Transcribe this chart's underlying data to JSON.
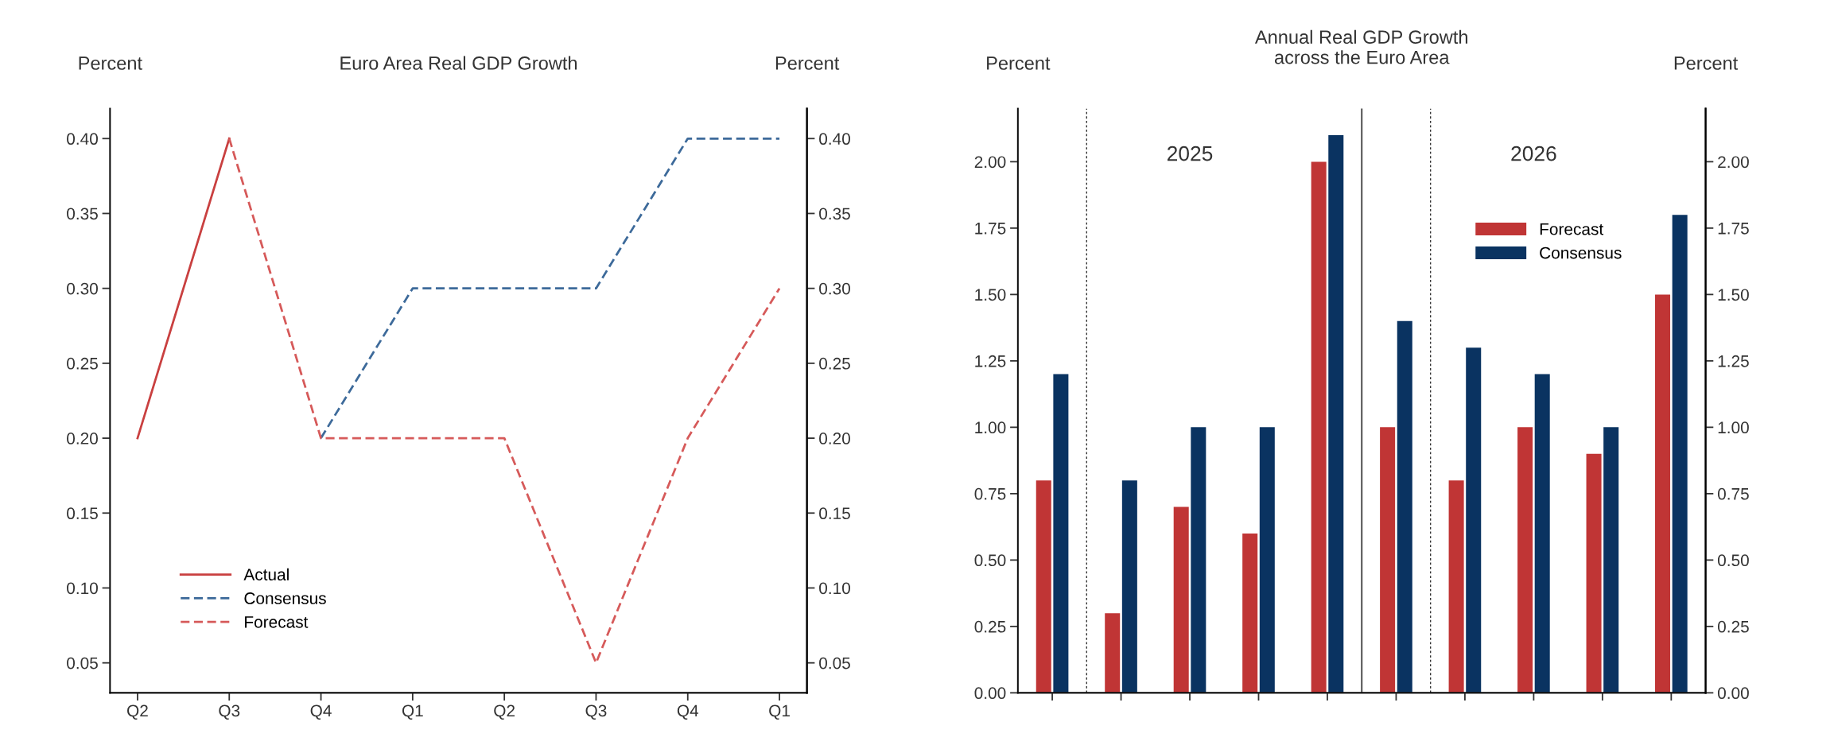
{
  "chart_data": [
    {
      "type": "line",
      "title": "Euro Area Real GDP Growth",
      "ylabel": "Percent",
      "y2label": "Percent",
      "categories": [
        "Q2",
        "Q3",
        "Q4",
        "Q1",
        "Q2",
        "Q3",
        "Q4",
        "Q1"
      ],
      "ylim": [
        0.03,
        0.42
      ],
      "yticks": [
        {
          "value": 0.05,
          "label": "0.05"
        },
        {
          "value": 0.1,
          "label": "0.10"
        },
        {
          "value": 0.15,
          "label": "0.15"
        },
        {
          "value": 0.2,
          "label": "0.20"
        },
        {
          "value": 0.25,
          "label": "0.25"
        },
        {
          "value": 0.3,
          "label": "0.30"
        },
        {
          "value": 0.35,
          "label": "0.35"
        },
        {
          "value": 0.4,
          "label": "0.40"
        }
      ],
      "y2lim": [
        0.03,
        0.42
      ],
      "y2ticks": [
        {
          "value": 0.05,
          "label": "0.05"
        },
        {
          "value": 0.1,
          "label": "0.10"
        },
        {
          "value": 0.15,
          "label": "0.15"
        },
        {
          "value": 0.2,
          "label": "0.20"
        },
        {
          "value": 0.25,
          "label": "0.25"
        },
        {
          "value": 0.3,
          "label": "0.30"
        },
        {
          "value": 0.35,
          "label": "0.35"
        },
        {
          "value": 0.4,
          "label": "0.40"
        }
      ],
      "legend": "bottom left",
      "series": [
        {
          "name": "Actual",
          "color": "#c94040",
          "line_style": "solid",
          "values": [
            0.2,
            0.4,
            null,
            null,
            null,
            null,
            null,
            null
          ]
        },
        {
          "name": "Consensus",
          "color": "#3d6a9a",
          "line_style": "dashed",
          "values": [
            null,
            null,
            0.2,
            0.3,
            0.3,
            0.3,
            0.4,
            0.4
          ]
        },
        {
          "name": "Forecast",
          "color": "#d65a5a",
          "line_style": "dashed",
          "values": [
            null,
            0.4,
            0.2,
            0.2,
            0.2,
            0.05,
            0.2,
            0.3
          ]
        }
      ]
    },
    {
      "type": "bar",
      "title": "Annual Real GDP Growth\nacross the Euro Area",
      "ylabel": "Percent",
      "y2label": "Percent",
      "categories": [
        null,
        null,
        null,
        null,
        null,
        null,
        null,
        null,
        null,
        null
      ],
      "ylim": [
        0,
        2.2
      ],
      "yticks": [
        {
          "value": 0,
          "label": "0.00"
        },
        {
          "value": 0.25,
          "label": "0.25"
        },
        {
          "value": 0.5,
          "label": "0.50"
        },
        {
          "value": 0.75,
          "label": "0.75"
        },
        {
          "value": 1,
          "label": "1.00"
        },
        {
          "value": 1.25,
          "label": "1.25"
        },
        {
          "value": 1.5,
          "label": "1.50"
        },
        {
          "value": 1.75,
          "label": "1.75"
        },
        {
          "value": 2,
          "label": "2.00"
        }
      ],
      "y2lim": [
        0,
        2.2
      ],
      "y2ticks": [
        {
          "value": 0,
          "label": "0.00"
        },
        {
          "value": 0.25,
          "label": "0.25"
        },
        {
          "value": 0.5,
          "label": "0.50"
        },
        {
          "value": 0.75,
          "label": "0.75"
        },
        {
          "value": 1,
          "label": "1.00"
        },
        {
          "value": 1.25,
          "label": "1.25"
        },
        {
          "value": 1.5,
          "label": "1.50"
        },
        {
          "value": 1.75,
          "label": "1.75"
        },
        {
          "value": 2,
          "label": "2.00"
        }
      ],
      "legend": "top right",
      "annotations": [
        "2025",
        "2026"
      ],
      "series": [
        {
          "name": "Forecast",
          "color": "#c03535",
          "values": [
            0.8,
            0.3,
            0.7,
            0.6,
            2.0,
            1.0,
            0.8,
            1.0,
            0.9,
            1.5
          ]
        },
        {
          "name": "Consensus",
          "color": "#0a3361",
          "values": [
            1.2,
            0.8,
            1.0,
            1.0,
            2.1,
            1.4,
            1.3,
            1.2,
            1.0,
            1.8
          ]
        }
      ]
    }
  ]
}
